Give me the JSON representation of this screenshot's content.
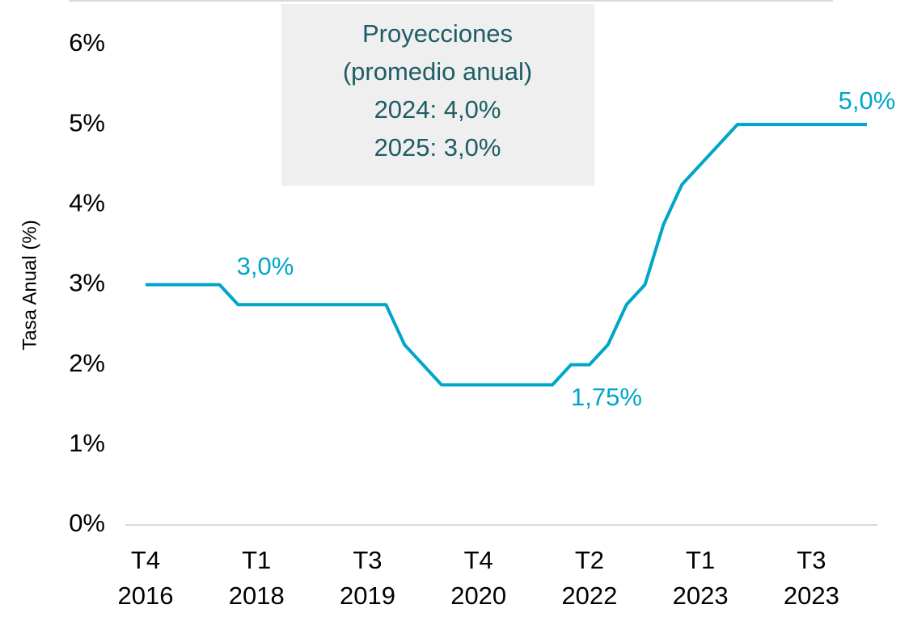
{
  "chart_data": {
    "type": "line",
    "ylabel": "Tasa Anual (%)",
    "categories": [
      "T4\n2016",
      null,
      null,
      null,
      null,
      null,
      "T1\n2018",
      null,
      null,
      null,
      null,
      null,
      "T3\n2019",
      null,
      null,
      null,
      null,
      null,
      "T4\n2020",
      null,
      null,
      null,
      null,
      null,
      "T2\n2022",
      null,
      null,
      null,
      null,
      null,
      "T1\n2023",
      null,
      null,
      null,
      null,
      null,
      "T3\n2023",
      null,
      null,
      null
    ],
    "series": [
      {
        "name": "Tasa Anual",
        "color": "#00a6c9",
        "values": [
          3,
          3,
          3,
          3,
          3,
          2.75,
          2.75,
          2.75,
          2.75,
          2.75,
          2.75,
          2.75,
          2.75,
          2.75,
          2.25,
          2,
          1.75,
          1.75,
          1.75,
          1.75,
          1.75,
          1.75,
          1.75,
          2,
          2,
          2.25,
          2.75,
          3,
          3.75,
          4.25,
          4.5,
          4.75,
          5,
          5,
          5,
          5,
          5,
          5,
          5,
          5
        ]
      }
    ],
    "ylim": [
      0,
      6
    ],
    "yticks": [
      {
        "value": 0,
        "label": "0%"
      },
      {
        "value": 1,
        "label": "1%"
      },
      {
        "value": 2,
        "label": "2%"
      },
      {
        "value": 3,
        "label": "3%"
      },
      {
        "value": 4,
        "label": "4%"
      },
      {
        "value": 5,
        "label": "5%"
      },
      {
        "value": 6,
        "label": "6%"
      }
    ],
    "annotations": [
      "3,0%",
      "1,75%",
      "5,0%"
    ],
    "box": [
      "Proyecciones",
      "(promedio anual)",
      "2024: 4,0%",
      "2025: 3,0%"
    ]
  }
}
